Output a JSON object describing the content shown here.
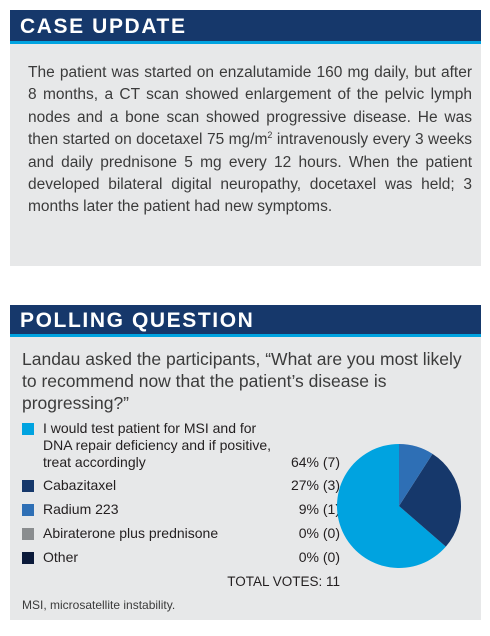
{
  "case_update": {
    "title": "CASE UPDATE",
    "text_before_sup": "The patient was started on enzalutamide 160 mg daily, but after 8 months, a CT scan showed enlargement of the pelvic lymph nodes and a bone scan showed progressive disease. He was then started on docetaxel 75 mg/m",
    "sup": "2",
    "text_after_sup": " intravenously every 3 weeks and daily prednisone 5 mg every 12 hours. When the patient developed bilateral digital neuropathy, docetaxel was held; 3 months later the patient had new symptoms."
  },
  "polling": {
    "title": "POLLING QUESTION",
    "question": "Landau asked the participants, “What are you most likely to recommend now that the patient’s disease is progressing?”",
    "total_votes": "TOTAL VOTES: 11",
    "footnote": "MSI, microsatellite instability."
  },
  "chart_data": {
    "type": "pie",
    "categories": [
      "I would test patient for MSI and for DNA repair deficiency and if positive, treat accordingly",
      "Cabazitaxel",
      "Radium 223",
      "Abiraterone plus prednisone",
      "Other"
    ],
    "values": [
      7,
      3,
      1,
      0,
      0
    ],
    "labels": [
      "64% (7)",
      "27% (3)",
      "9% (1)",
      "0% (0)",
      "0% (0)"
    ],
    "colors": [
      "#00a3e0",
      "#16386b",
      "#2e6fb5",
      "#8a8d8f",
      "#0b1a3a"
    ]
  }
}
